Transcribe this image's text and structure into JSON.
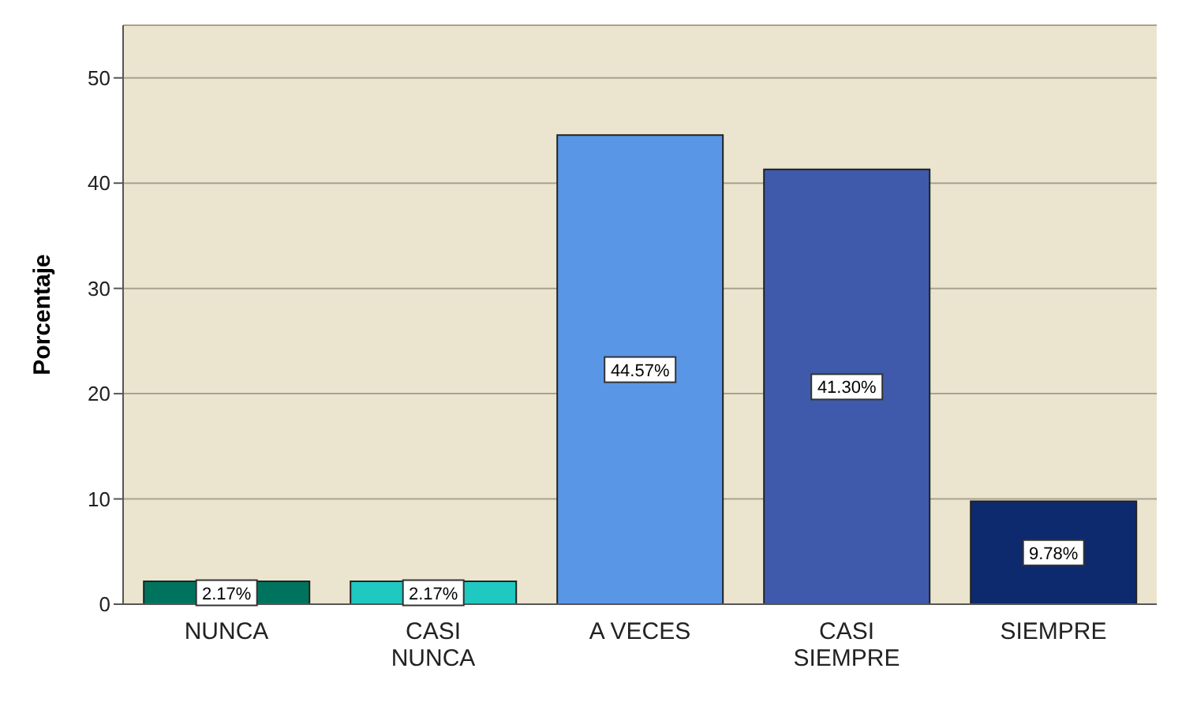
{
  "chart_data": {
    "type": "bar",
    "ylabel": "Porcentaje",
    "categories": [
      "NUNCA",
      "CASI NUNCA",
      "A VECES",
      "CASI SIEMPRE",
      "SIEMPRE"
    ],
    "values": [
      2.17,
      2.17,
      44.57,
      41.3,
      9.78
    ],
    "colors": [
      "#00735e",
      "#1fc8c0",
      "#5a96e6",
      "#3f5aaa",
      "#0d2a6e"
    ],
    "value_labels": [
      "2.17%",
      "2.17%",
      "44.57%",
      "41.30%",
      "9.78%"
    ],
    "ylim": [
      0,
      55
    ],
    "yticks": [
      0,
      10,
      20,
      30,
      40,
      50
    ],
    "grid": "y"
  }
}
